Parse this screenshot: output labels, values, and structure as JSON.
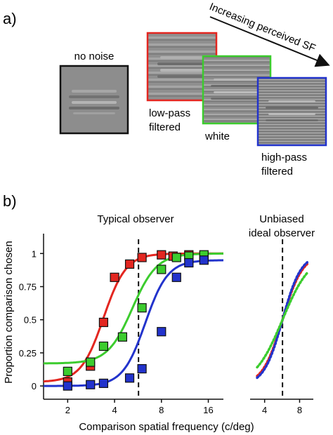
{
  "figure": {
    "panel_a_label": "a)",
    "panel_b_label": "b)",
    "stimuli": [
      {
        "label": "no noise",
        "border_color": "#111111"
      },
      {
        "label_line1": "low-pass",
        "label_line2": "filtered",
        "border_color": "#e32620"
      },
      {
        "label": "white",
        "border_color": "#3ccc2e"
      },
      {
        "label_line1": "high-pass",
        "label_line2": "filtered",
        "border_color": "#2233cc"
      }
    ],
    "arrow_label": "Increasing perceived SF"
  },
  "chart_data": [
    {
      "type": "scatter",
      "title": "Typical observer",
      "ylabel": "Proportion comparison chosen",
      "xlabel": "Comparison spatial frequency (c/deg)",
      "x_scale": "log",
      "x_ticks": [
        2,
        4,
        8,
        16
      ],
      "y_ticks": [
        0,
        0.25,
        0.5,
        0.75,
        1
      ],
      "y_tick_labels": [
        "0",
        "0.25",
        "0.5",
        "0.75",
        "1"
      ],
      "xlim": [
        1.4,
        20
      ],
      "ylim": [
        -0.1,
        1.15
      ],
      "reference_line_x": 5.7,
      "series": [
        {
          "color": "#e32620",
          "x": [
            2,
            2.8,
            3.4,
            4,
            5,
            6,
            8,
            9.5,
            12,
            15
          ],
          "y": [
            0.03,
            0.15,
            0.48,
            0.82,
            0.92,
            0.97,
            0.99,
            0.98,
            0.99,
            0.98
          ],
          "fit": {
            "midpoint": 3.4,
            "slope": 6.0,
            "lower": 0.03,
            "upper": 1.0
          }
        },
        {
          "color": "#3ccc2e",
          "x": [
            2,
            2.8,
            3.4,
            4.5,
            6,
            8,
            10,
            12,
            15
          ],
          "y": [
            0.11,
            0.18,
            0.3,
            0.37,
            0.59,
            0.88,
            0.97,
            0.98,
            0.99
          ],
          "fit": {
            "midpoint": 5.2,
            "slope": 5.5,
            "lower": 0.17,
            "upper": 1.0
          }
        },
        {
          "color": "#2233cc",
          "x": [
            2,
            2.8,
            3.4,
            5,
            6,
            8,
            10,
            12,
            15
          ],
          "y": [
            0.0,
            0.01,
            0.02,
            0.06,
            0.13,
            0.41,
            0.82,
            0.93,
            0.95
          ],
          "fit": {
            "midpoint": 6.3,
            "slope": 6.0,
            "lower": 0.0,
            "upper": 0.95
          }
        }
      ]
    },
    {
      "type": "line",
      "title_line1": "Unbiased",
      "title_line2": "ideal observer",
      "x_scale": "log",
      "x_ticks": [
        4,
        8
      ],
      "xlim": [
        3.0,
        10.5
      ],
      "ylim": [
        -0.1,
        1.15
      ],
      "reference_line_x": 5.7,
      "series": [
        {
          "color": "#e32620",
          "midpoint": 5.7,
          "slope": 5.0
        },
        {
          "color": "#2233cc",
          "midpoint": 5.7,
          "slope": 5.4
        },
        {
          "color": "#3ccc2e",
          "midpoint": 5.7,
          "slope": 3.6
        }
      ]
    }
  ]
}
